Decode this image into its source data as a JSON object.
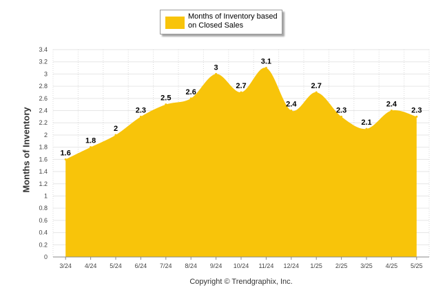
{
  "colors": {
    "area": "#F8C40A",
    "grid": "#e6e6e6",
    "axis": "#888888"
  },
  "legend": {
    "label": "Months of Inventory based on Closed Sales"
  },
  "footer": {
    "copyright": "Copyright © Trendgraphix, Inc."
  },
  "chart_data": {
    "type": "area",
    "categories": [
      "3/24",
      "4/24",
      "5/24",
      "6/24",
      "7/24",
      "8/24",
      "9/24",
      "10/24",
      "11/24",
      "12/24",
      "1/25",
      "2/25",
      "3/25",
      "4/25",
      "5/25"
    ],
    "series": [
      {
        "name": "Months of Inventory based on Closed Sales",
        "values": [
          1.6,
          1.8,
          2,
          2.3,
          2.5,
          2.6,
          3,
          2.7,
          3.1,
          2.4,
          2.7,
          2.3,
          2.1,
          2.4,
          2.3
        ]
      }
    ],
    "data_labels": [
      "1.6",
      "1.8",
      "2",
      "2.3",
      "2.5",
      "2.6",
      "3",
      "2.7",
      "3.1",
      "2.4",
      "2.7",
      "2.3",
      "2.1",
      "2.4",
      "2.3"
    ],
    "yticks": [
      "0",
      "0.2",
      "0.4",
      "0.6",
      "0.8",
      "1",
      "1.2",
      "1.4",
      "1.6",
      "1.8",
      "2",
      "2.2",
      "2.4",
      "2.6",
      "2.8",
      "3",
      "3.2",
      "3.4"
    ],
    "ylabel": "Months of Inventory",
    "xlabel": "",
    "ylim": [
      0,
      3.4
    ],
    "grid": true,
    "legend_position": "top-center"
  }
}
